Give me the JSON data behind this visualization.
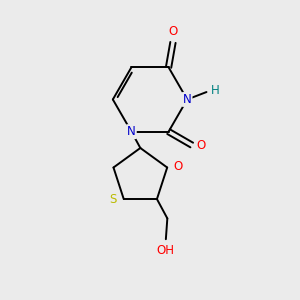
{
  "background_color": "#ebebeb",
  "bond_color": "#000000",
  "figsize": [
    3.0,
    3.0
  ],
  "dpi": 100,
  "atom_colors": {
    "N": "#0000cc",
    "O": "#ff0000",
    "S": "#bbbb00",
    "H_teal": "#008080",
    "C": "#000000"
  },
  "font_size": 8.5
}
